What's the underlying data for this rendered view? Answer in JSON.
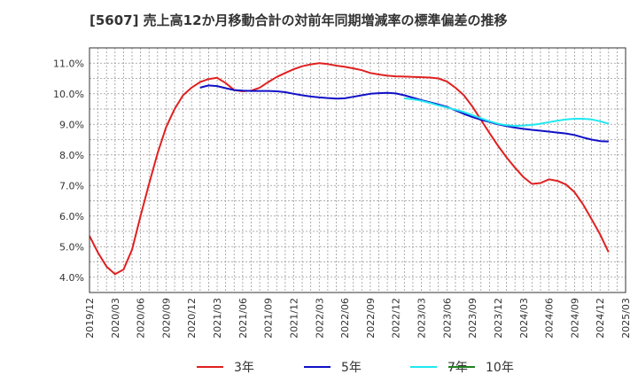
{
  "chart_data": {
    "type": "line",
    "title": "[5607]  売上高12か月移動合計の対前年同期増減率の標準偏差の推移",
    "xlabel": "",
    "ylabel": "",
    "ylim": [
      3.5,
      11.5
    ],
    "y_ticks": [
      "4.0%",
      "5.0%",
      "6.0%",
      "7.0%",
      "8.0%",
      "9.0%",
      "10.0%",
      "11.0%"
    ],
    "y_tick_values": [
      4,
      5,
      6,
      7,
      8,
      9,
      10,
      11
    ],
    "x_ticks": [
      "2019/12",
      "2020/03",
      "2020/06",
      "2020/09",
      "2020/12",
      "2021/03",
      "2021/06",
      "2021/09",
      "2021/12",
      "2022/03",
      "2022/06",
      "2022/09",
      "2022/12",
      "2023/03",
      "2023/06",
      "2023/09",
      "2023/12",
      "2024/03",
      "2024/06",
      "2024/09",
      "2024/12",
      "2025/03"
    ],
    "grid": true,
    "legend_position": "bottom",
    "series": [
      {
        "name": "3年",
        "color": "#e02020",
        "points": [
          [
            "2019/12",
            5.35
          ],
          [
            "2020/01",
            4.8
          ],
          [
            "2020/02",
            4.35
          ],
          [
            "2020/03",
            4.1
          ],
          [
            "2020/04",
            4.25
          ],
          [
            "2020/05",
            4.9
          ],
          [
            "2020/06",
            6.0
          ],
          [
            "2020/07",
            7.05
          ],
          [
            "2020/08",
            8.05
          ],
          [
            "2020/09",
            8.9
          ],
          [
            "2020/10",
            9.5
          ],
          [
            "2020/11",
            9.95
          ],
          [
            "2020/12",
            10.2
          ],
          [
            "2021/01",
            10.38
          ],
          [
            "2021/02",
            10.48
          ],
          [
            "2021/03",
            10.52
          ],
          [
            "2021/04",
            10.35
          ],
          [
            "2021/05",
            10.12
          ],
          [
            "2021/06",
            10.08
          ],
          [
            "2021/07",
            10.1
          ],
          [
            "2021/08",
            10.2
          ],
          [
            "2021/09",
            10.38
          ],
          [
            "2021/10",
            10.55
          ],
          [
            "2021/11",
            10.68
          ],
          [
            "2021/12",
            10.8
          ],
          [
            "2022/01",
            10.9
          ],
          [
            "2022/02",
            10.96
          ],
          [
            "2022/03",
            11.0
          ],
          [
            "2022/04",
            10.97
          ],
          [
            "2022/05",
            10.92
          ],
          [
            "2022/06",
            10.88
          ],
          [
            "2022/07",
            10.83
          ],
          [
            "2022/08",
            10.77
          ],
          [
            "2022/09",
            10.68
          ],
          [
            "2022/10",
            10.63
          ],
          [
            "2022/11",
            10.59
          ],
          [
            "2022/12",
            10.57
          ],
          [
            "2023/01",
            10.56
          ],
          [
            "2023/02",
            10.55
          ],
          [
            "2023/03",
            10.54
          ],
          [
            "2023/04",
            10.53
          ],
          [
            "2023/05",
            10.5
          ],
          [
            "2023/06",
            10.4
          ],
          [
            "2023/07",
            10.2
          ],
          [
            "2023/08",
            9.95
          ],
          [
            "2023/09",
            9.58
          ],
          [
            "2023/10",
            9.15
          ],
          [
            "2023/11",
            8.72
          ],
          [
            "2023/12",
            8.3
          ],
          [
            "2024/01",
            7.92
          ],
          [
            "2024/02",
            7.58
          ],
          [
            "2024/03",
            7.27
          ],
          [
            "2024/04",
            7.05
          ],
          [
            "2024/05",
            7.08
          ],
          [
            "2024/06",
            7.2
          ],
          [
            "2024/07",
            7.15
          ],
          [
            "2024/08",
            7.03
          ],
          [
            "2024/09",
            6.78
          ],
          [
            "2024/10",
            6.38
          ],
          [
            "2024/11",
            5.9
          ],
          [
            "2024/12",
            5.4
          ],
          [
            "2025/01",
            4.82
          ]
        ]
      },
      {
        "name": "5年",
        "color": "#1010c8",
        "points": [
          [
            "2021/01",
            10.2
          ],
          [
            "2021/02",
            10.27
          ],
          [
            "2021/03",
            10.25
          ],
          [
            "2021/04",
            10.18
          ],
          [
            "2021/05",
            10.12
          ],
          [
            "2021/06",
            10.1
          ],
          [
            "2021/07",
            10.09
          ],
          [
            "2021/08",
            10.09
          ],
          [
            "2021/09",
            10.09
          ],
          [
            "2021/10",
            10.08
          ],
          [
            "2021/11",
            10.05
          ],
          [
            "2021/12",
            10.0
          ],
          [
            "2022/01",
            9.95
          ],
          [
            "2022/02",
            9.91
          ],
          [
            "2022/03",
            9.88
          ],
          [
            "2022/04",
            9.86
          ],
          [
            "2022/05",
            9.84
          ],
          [
            "2022/06",
            9.85
          ],
          [
            "2022/07",
            9.9
          ],
          [
            "2022/08",
            9.95
          ],
          [
            "2022/09",
            10.0
          ],
          [
            "2022/10",
            10.02
          ],
          [
            "2022/11",
            10.03
          ],
          [
            "2022/12",
            10.01
          ],
          [
            "2023/01",
            9.95
          ],
          [
            "2023/02",
            9.87
          ],
          [
            "2023/03",
            9.79
          ],
          [
            "2023/04",
            9.72
          ],
          [
            "2023/05",
            9.65
          ],
          [
            "2023/06",
            9.57
          ],
          [
            "2023/07",
            9.46
          ],
          [
            "2023/08",
            9.34
          ],
          [
            "2023/09",
            9.24
          ],
          [
            "2023/10",
            9.15
          ],
          [
            "2023/11",
            9.08
          ],
          [
            "2023/12",
            9.0
          ],
          [
            "2024/01",
            8.94
          ],
          [
            "2024/02",
            8.89
          ],
          [
            "2024/03",
            8.85
          ],
          [
            "2024/04",
            8.82
          ],
          [
            "2024/05",
            8.79
          ],
          [
            "2024/06",
            8.76
          ],
          [
            "2024/07",
            8.73
          ],
          [
            "2024/08",
            8.7
          ],
          [
            "2024/09",
            8.65
          ],
          [
            "2024/10",
            8.57
          ],
          [
            "2024/11",
            8.5
          ],
          [
            "2024/12",
            8.45
          ],
          [
            "2025/01",
            8.44
          ]
        ]
      },
      {
        "name": "7年",
        "color": "#20e8f0",
        "points": [
          [
            "2023/01",
            9.85
          ],
          [
            "2023/02",
            9.82
          ],
          [
            "2023/03",
            9.77
          ],
          [
            "2023/04",
            9.7
          ],
          [
            "2023/05",
            9.62
          ],
          [
            "2023/06",
            9.55
          ],
          [
            "2023/07",
            9.48
          ],
          [
            "2023/08",
            9.4
          ],
          [
            "2023/09",
            9.3
          ],
          [
            "2023/10",
            9.2
          ],
          [
            "2023/11",
            9.1
          ],
          [
            "2023/12",
            9.02
          ],
          [
            "2024/01",
            8.97
          ],
          [
            "2024/02",
            8.95
          ],
          [
            "2024/03",
            8.96
          ],
          [
            "2024/04",
            8.98
          ],
          [
            "2024/05",
            9.02
          ],
          [
            "2024/06",
            9.07
          ],
          [
            "2024/07",
            9.12
          ],
          [
            "2024/08",
            9.16
          ],
          [
            "2024/09",
            9.18
          ],
          [
            "2024/10",
            9.18
          ],
          [
            "2024/11",
            9.16
          ],
          [
            "2024/12",
            9.1
          ],
          [
            "2025/01",
            9.02
          ]
        ]
      },
      {
        "name": "10年",
        "color": "#208020",
        "points": []
      }
    ]
  }
}
